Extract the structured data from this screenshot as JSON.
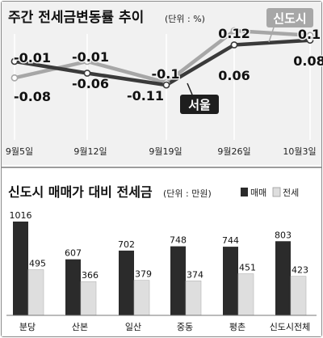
{
  "chart_data": [
    {
      "type": "line",
      "title": "주간 전세금변동률 추이",
      "unit": "(단위 : %)",
      "x": [
        "9월5일",
        "9월12일",
        "9월19일",
        "9월26일",
        "10월3일"
      ],
      "series": [
        {
          "name": "서울",
          "values": [
            -0.01,
            -0.06,
            -0.11,
            0.06,
            0.08
          ],
          "color": "#3a3a3a"
        },
        {
          "name": "신도시",
          "values": [
            -0.08,
            -0.01,
            -0.1,
            0.12,
            0.1
          ],
          "color": "#a7a7a7"
        }
      ],
      "data_labels": {
        "서울": [
          "-0.01",
          "-0.06",
          "-0.11",
          "0.06",
          "0.08"
        ],
        "신도시": [
          "-0.08",
          "-0.01",
          "-0.1",
          "0.12",
          "0.1"
        ]
      },
      "ylim": [
        -0.13,
        0.13
      ]
    },
    {
      "type": "bar",
      "title": "신도시 매매가 대비 전세금",
      "unit": "(단위 : 만원)",
      "categories": [
        "분당",
        "산본",
        "일산",
        "중동",
        "평촌",
        "신도시전체"
      ],
      "series": [
        {
          "name": "매매",
          "values": [
            1016,
            607,
            702,
            748,
            744,
            803
          ],
          "color": "#2b2b2b"
        },
        {
          "name": "전세",
          "values": [
            495,
            366,
            379,
            374,
            451,
            423
          ],
          "color": "#dedede"
        }
      ],
      "ylim": [
        0,
        1016
      ]
    }
  ]
}
